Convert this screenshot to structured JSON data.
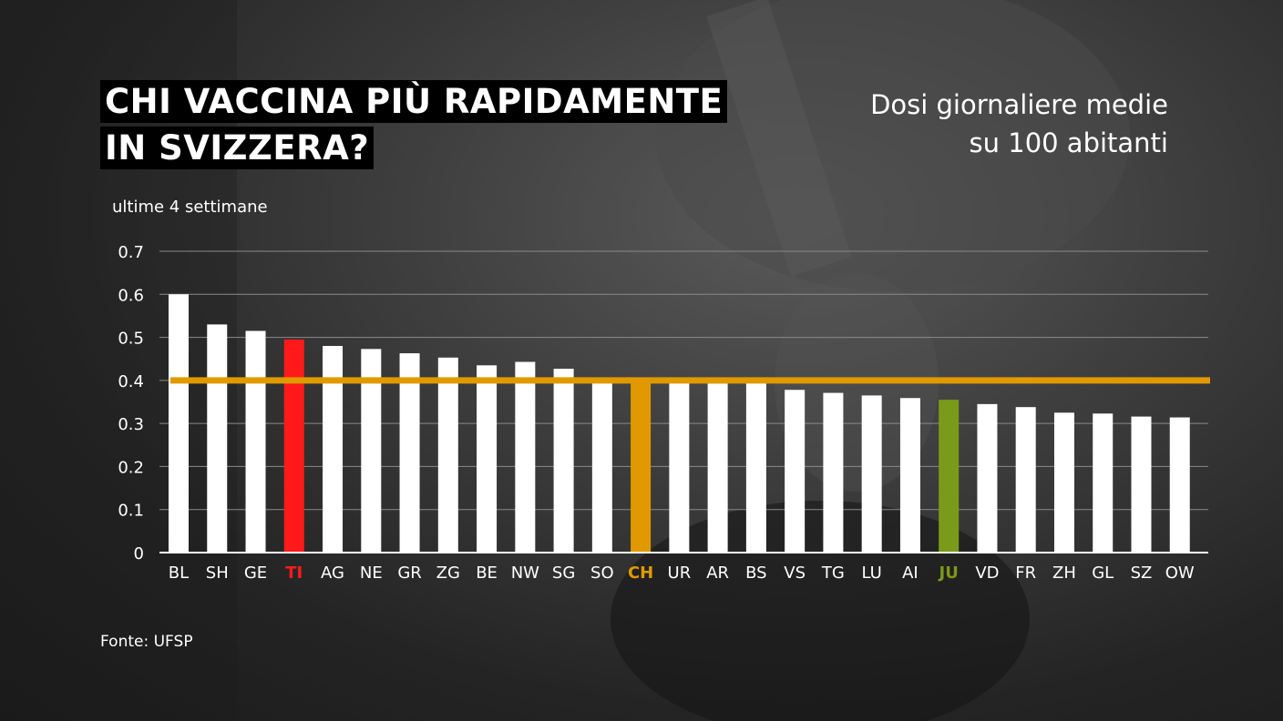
{
  "header": {
    "title_line1": "CHI VACCINA PIÙ RAPIDAMENTE",
    "title_line2": "IN SVIZZERA?",
    "subtitle_line1": "Dosi giornaliere medie",
    "subtitle_line2": "su 100 abitanti",
    "period": "ultime 4 settimane"
  },
  "footer": {
    "source": "Fonte: UFSP"
  },
  "colors": {
    "default_bar": "#ffffff",
    "TI": "#ff1a1a",
    "CH": "#e09a00",
    "JU": "#7a9a1a",
    "reference_line": "#e09a00",
    "grid": "#8a8a8a",
    "axis": "#ffffff"
  },
  "chart_data": {
    "type": "bar",
    "categories": [
      "BL",
      "SH",
      "GE",
      "TI",
      "AG",
      "NE",
      "GR",
      "ZG",
      "BE",
      "NW",
      "SG",
      "SO",
      "CH",
      "UR",
      "AR",
      "BS",
      "VS",
      "TG",
      "LU",
      "AI",
      "JU",
      "VD",
      "FR",
      "ZH",
      "GL",
      "SZ",
      "OW"
    ],
    "values": [
      0.6,
      0.53,
      0.515,
      0.495,
      0.48,
      0.473,
      0.463,
      0.453,
      0.435,
      0.443,
      0.427,
      0.4,
      0.4,
      0.4,
      0.393,
      0.395,
      0.378,
      0.371,
      0.365,
      0.359,
      0.355,
      0.345,
      0.338,
      0.325,
      0.323,
      0.316,
      0.314
    ],
    "highlight": {
      "TI": "TI",
      "CH": "CH",
      "JU": "JU"
    },
    "reference_line": {
      "label": "CH",
      "value": 0.4
    },
    "ylim": [
      0,
      0.7
    ],
    "yticks": [
      "0",
      "0.1",
      "0.2",
      "0.3",
      "0.4",
      "0.5",
      "0.6",
      "0.7"
    ],
    "ytick_values": [
      0,
      0.1,
      0.2,
      0.3,
      0.4,
      0.5,
      0.6,
      0.7
    ],
    "grid": true,
    "xlabel": "",
    "ylabel": ""
  }
}
